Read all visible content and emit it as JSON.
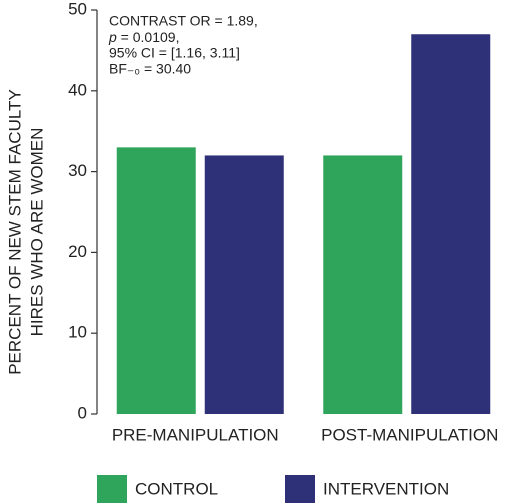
{
  "chart_data": {
    "type": "bar",
    "categories": [
      "PRE-MANIPULATION",
      "POST-MANIPULATION"
    ],
    "series": [
      {
        "name": "CONTROL",
        "color": "#2ea55a",
        "values": [
          33,
          32
        ]
      },
      {
        "name": "INTERVENTION",
        "color": "#2e3177",
        "values": [
          32,
          47
        ]
      }
    ],
    "ylabel": [
      "PERCENT OF NEW STEM FACULTY",
      "HIRES WHO ARE WOMEN"
    ],
    "annotations": [
      "CONTRAST OR = 1.89,",
      "p = 0.0109,",
      "95% CI = [1.16, 3.11]",
      "BF₋₀ = 30.40"
    ],
    "ylim": [
      0,
      50
    ],
    "yticks": [
      0,
      10,
      20,
      30,
      40,
      50
    ],
    "legend": "bottom"
  }
}
